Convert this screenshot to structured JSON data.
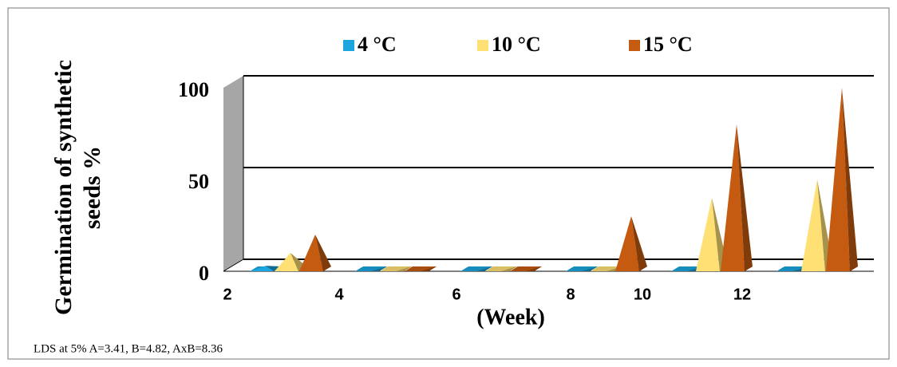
{
  "chart_data": {
    "type": "pyramid",
    "y_label": [
      "Germination of synthetic",
      "seeds %"
    ],
    "x_label": "(Week)",
    "categories": [
      "2",
      "4",
      "6",
      "8",
      "10",
      "12"
    ],
    "series": [
      {
        "name": "4 °C",
        "color": "#1ba6e0",
        "values": [
          3,
          0,
          0,
          0,
          0,
          0
        ]
      },
      {
        "name": "10 °C",
        "color": "#ffe074",
        "values": [
          10,
          0,
          0,
          0,
          40,
          50
        ]
      },
      {
        "name": "15 °C",
        "color": "#c55a11",
        "values": [
          20,
          0,
          0,
          30,
          80,
          100
        ]
      }
    ],
    "ylim": [
      0,
      100
    ],
    "yticks": [
      0,
      50,
      100
    ],
    "grid": true,
    "note": "LDS at 5% A=3.41,  B=4.82,  AxB=8.36"
  }
}
